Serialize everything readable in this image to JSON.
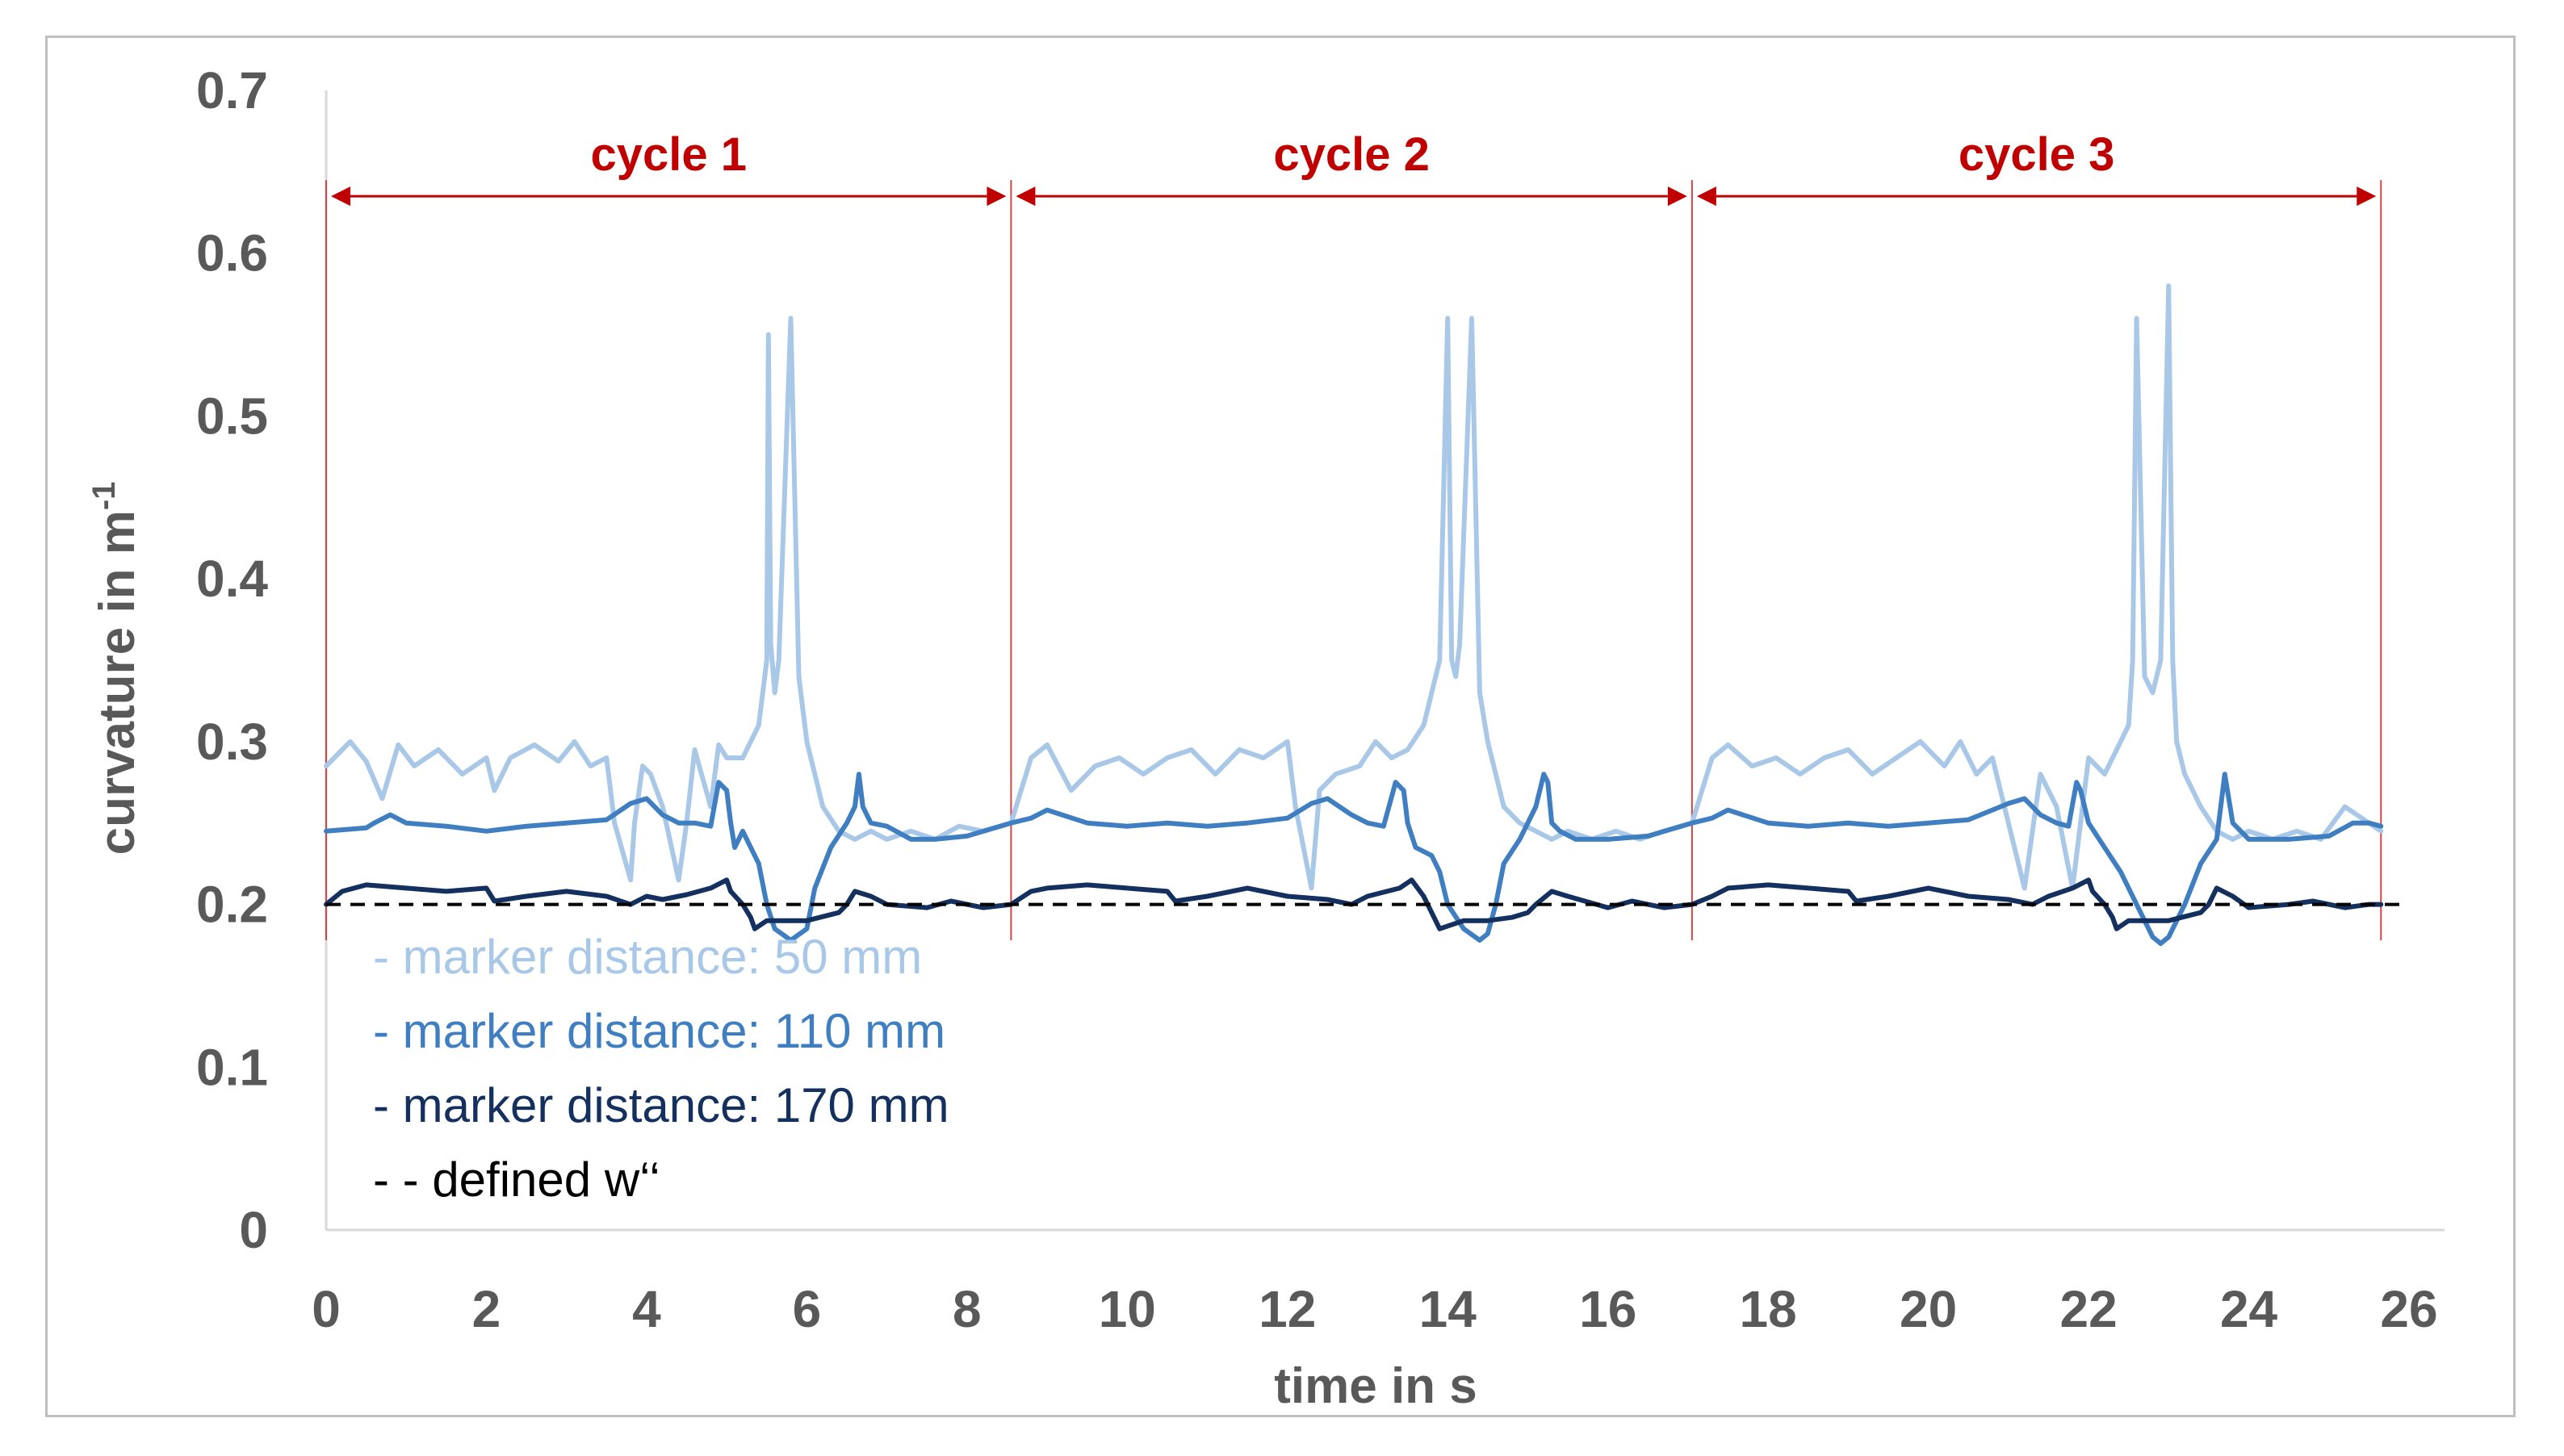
{
  "chart_data": {
    "type": "line",
    "title": "",
    "xlabel": "time in s",
    "ylabel": "curvature in m",
    "ylabel_superscript": "-1",
    "xlim": [
      0,
      26
    ],
    "ylim": [
      0,
      0.7
    ],
    "xticks": [
      0,
      2,
      4,
      6,
      8,
      10,
      12,
      14,
      16,
      18,
      20,
      22,
      24,
      26
    ],
    "yticks": [
      0,
      0.1,
      0.2,
      0.3,
      0.4,
      0.5,
      0.6,
      0.7
    ],
    "yticklabels": [
      "0",
      "0.1",
      "0.2",
      "0.3",
      "0.4",
      "0.5",
      "0.6",
      "0.7"
    ],
    "grid": false,
    "legend_position": "bottom-left",
    "cycles": [
      {
        "label": "cycle 1",
        "start": 0,
        "end": 8.55
      },
      {
        "label": "cycle 2",
        "start": 8.55,
        "end": 17.05
      },
      {
        "label": "cycle 3",
        "start": 17.05,
        "end": 25.65
      }
    ],
    "series": [
      {
        "name": "marker distance: 50 mm",
        "legend_prefix": "-",
        "color": "#a9c8e8",
        "dash": "solid",
        "x": [
          0,
          0.3,
          0.5,
          0.7,
          0.9,
          1.1,
          1.4,
          1.7,
          2.0,
          2.1,
          2.3,
          2.6,
          2.9,
          3.1,
          3.3,
          3.5,
          3.6,
          3.8,
          3.85,
          3.95,
          4.05,
          4.2,
          4.4,
          4.5,
          4.6,
          4.8,
          4.9,
          5.0,
          5.2,
          5.4,
          5.5,
          5.52,
          5.55,
          5.6,
          5.65,
          5.8,
          5.9,
          6.0,
          6.05,
          6.1,
          6.2,
          6.4,
          6.6,
          6.8,
          7.0,
          7.3,
          7.6,
          7.9,
          8.2,
          8.55,
          8.8,
          9.0,
          9.3,
          9.6,
          9.9,
          10.2,
          10.5,
          10.8,
          11.1,
          11.4,
          11.7,
          12.0,
          12.1,
          12.3,
          12.4,
          12.6,
          12.9,
          13.1,
          13.3,
          13.5,
          13.7,
          13.9,
          14.0,
          14.05,
          14.1,
          14.15,
          14.3,
          14.4,
          14.5,
          14.55,
          14.6,
          14.7,
          14.9,
          15.1,
          15.3,
          15.5,
          15.8,
          16.1,
          16.4,
          16.7,
          17.05,
          17.3,
          17.5,
          17.8,
          18.1,
          18.4,
          18.7,
          19.0,
          19.3,
          19.6,
          19.9,
          20.2,
          20.4,
          20.6,
          20.8,
          21.0,
          21.2,
          21.4,
          21.6,
          21.8,
          22.0,
          22.2,
          22.4,
          22.5,
          22.55,
          22.6,
          22.7,
          22.8,
          22.9,
          23.0,
          23.05,
          23.1,
          23.2,
          23.4,
          23.6,
          23.8,
          24.0,
          24.3,
          24.6,
          24.9,
          25.2,
          25.65
        ],
        "y": [
          0.285,
          0.3,
          0.288,
          0.265,
          0.298,
          0.285,
          0.295,
          0.28,
          0.29,
          0.27,
          0.29,
          0.298,
          0.288,
          0.3,
          0.285,
          0.29,
          0.25,
          0.215,
          0.25,
          0.285,
          0.28,
          0.26,
          0.215,
          0.25,
          0.295,
          0.26,
          0.298,
          0.29,
          0.29,
          0.31,
          0.35,
          0.55,
          0.36,
          0.33,
          0.35,
          0.56,
          0.34,
          0.3,
          0.29,
          0.28,
          0.26,
          0.245,
          0.24,
          0.245,
          0.24,
          0.245,
          0.24,
          0.248,
          0.245,
          0.25,
          0.29,
          0.298,
          0.27,
          0.285,
          0.29,
          0.28,
          0.29,
          0.295,
          0.28,
          0.295,
          0.29,
          0.3,
          0.26,
          0.21,
          0.27,
          0.28,
          0.285,
          0.3,
          0.29,
          0.295,
          0.31,
          0.35,
          0.56,
          0.35,
          0.34,
          0.36,
          0.56,
          0.33,
          0.3,
          0.29,
          0.28,
          0.26,
          0.25,
          0.245,
          0.24,
          0.245,
          0.24,
          0.245,
          0.24,
          0.245,
          0.25,
          0.29,
          0.298,
          0.285,
          0.29,
          0.28,
          0.29,
          0.295,
          0.28,
          0.29,
          0.3,
          0.285,
          0.3,
          0.28,
          0.29,
          0.25,
          0.21,
          0.28,
          0.26,
          0.21,
          0.29,
          0.28,
          0.3,
          0.31,
          0.35,
          0.56,
          0.34,
          0.33,
          0.35,
          0.58,
          0.35,
          0.3,
          0.28,
          0.26,
          0.245,
          0.24,
          0.245,
          0.24,
          0.245,
          0.24,
          0.26,
          0.245
        ]
      },
      {
        "name": "marker distance: 110 mm",
        "legend_prefix": "-",
        "color": "#3f7fc1",
        "dash": "solid",
        "x": [
          0,
          0.5,
          0.6,
          0.8,
          1.0,
          1.5,
          2.0,
          2.5,
          3.0,
          3.5,
          3.8,
          4.0,
          4.2,
          4.4,
          4.6,
          4.8,
          4.9,
          5.0,
          5.05,
          5.1,
          5.2,
          5.4,
          5.5,
          5.6,
          5.8,
          6.0,
          6.1,
          6.3,
          6.5,
          6.6,
          6.65,
          6.7,
          6.8,
          7.0,
          7.3,
          7.6,
          8.0,
          8.55,
          8.8,
          9.0,
          9.5,
          10.0,
          10.5,
          11.0,
          11.5,
          12.0,
          12.3,
          12.5,
          12.8,
          13.0,
          13.2,
          13.35,
          13.45,
          13.5,
          13.6,
          13.8,
          13.9,
          14.0,
          14.2,
          14.4,
          14.5,
          14.6,
          14.7,
          14.9,
          15.1,
          15.2,
          15.25,
          15.3,
          15.4,
          15.6,
          16.0,
          16.5,
          17.05,
          17.3,
          17.5,
          18.0,
          18.5,
          19.0,
          19.5,
          20.0,
          20.5,
          20.8,
          21.0,
          21.2,
          21.4,
          21.6,
          21.75,
          21.85,
          21.9,
          22.0,
          22.2,
          22.4,
          22.6,
          22.8,
          22.9,
          23.0,
          23.2,
          23.4,
          23.6,
          23.65,
          23.7,
          23.8,
          24.0,
          24.5,
          25.0,
          25.3,
          25.5,
          25.65
        ],
        "y": [
          0.245,
          0.247,
          0.25,
          0.255,
          0.25,
          0.248,
          0.245,
          0.248,
          0.25,
          0.252,
          0.262,
          0.265,
          0.255,
          0.25,
          0.25,
          0.248,
          0.275,
          0.27,
          0.25,
          0.235,
          0.245,
          0.225,
          0.2,
          0.185,
          0.178,
          0.185,
          0.21,
          0.235,
          0.25,
          0.26,
          0.28,
          0.26,
          0.25,
          0.248,
          0.24,
          0.24,
          0.242,
          0.25,
          0.253,
          0.258,
          0.25,
          0.248,
          0.25,
          0.248,
          0.25,
          0.253,
          0.262,
          0.265,
          0.255,
          0.25,
          0.248,
          0.275,
          0.27,
          0.25,
          0.235,
          0.23,
          0.22,
          0.2,
          0.185,
          0.178,
          0.182,
          0.2,
          0.225,
          0.24,
          0.26,
          0.28,
          0.275,
          0.25,
          0.245,
          0.24,
          0.24,
          0.242,
          0.25,
          0.253,
          0.258,
          0.25,
          0.248,
          0.25,
          0.248,
          0.25,
          0.252,
          0.258,
          0.262,
          0.265,
          0.255,
          0.25,
          0.248,
          0.275,
          0.27,
          0.25,
          0.235,
          0.22,
          0.2,
          0.18,
          0.176,
          0.18,
          0.2,
          0.225,
          0.24,
          0.26,
          0.28,
          0.25,
          0.24,
          0.24,
          0.242,
          0.25,
          0.25,
          0.248
        ]
      },
      {
        "name": "marker distance: 170 mm",
        "legend_prefix": "-",
        "color": "#14305e",
        "dash": "solid",
        "x": [
          0,
          0.2,
          0.5,
          1.0,
          1.5,
          2.0,
          2.1,
          2.5,
          3.0,
          3.5,
          3.8,
          4.0,
          4.2,
          4.5,
          4.8,
          5.0,
          5.05,
          5.2,
          5.3,
          5.35,
          5.5,
          5.8,
          6.0,
          6.4,
          6.5,
          6.6,
          6.8,
          7.0,
          7.5,
          7.8,
          8.2,
          8.55,
          8.8,
          9.0,
          9.5,
          10.0,
          10.5,
          10.6,
          11.0,
          11.5,
          12.0,
          12.5,
          12.8,
          13.0,
          13.4,
          13.55,
          13.7,
          13.8,
          13.9,
          14.2,
          14.5,
          14.8,
          15.0,
          15.1,
          15.3,
          15.5,
          16.0,
          16.3,
          16.7,
          17.05,
          17.3,
          17.5,
          18.0,
          18.5,
          19.0,
          19.1,
          19.5,
          20.0,
          20.5,
          21.0,
          21.3,
          21.5,
          21.8,
          22.0,
          22.05,
          22.2,
          22.3,
          22.35,
          22.5,
          22.8,
          23.0,
          23.4,
          23.5,
          23.6,
          23.8,
          24.0,
          24.5,
          24.8,
          25.2,
          25.5,
          25.65
        ],
        "y": [
          0.2,
          0.208,
          0.212,
          0.21,
          0.208,
          0.21,
          0.202,
          0.205,
          0.208,
          0.205,
          0.2,
          0.205,
          0.203,
          0.206,
          0.21,
          0.215,
          0.208,
          0.2,
          0.192,
          0.185,
          0.19,
          0.19,
          0.19,
          0.195,
          0.2,
          0.208,
          0.205,
          0.2,
          0.198,
          0.202,
          0.198,
          0.2,
          0.208,
          0.21,
          0.212,
          0.21,
          0.208,
          0.202,
          0.205,
          0.21,
          0.205,
          0.203,
          0.2,
          0.205,
          0.21,
          0.215,
          0.205,
          0.195,
          0.185,
          0.19,
          0.19,
          0.192,
          0.195,
          0.2,
          0.208,
          0.205,
          0.198,
          0.202,
          0.198,
          0.2,
          0.205,
          0.21,
          0.212,
          0.21,
          0.208,
          0.202,
          0.205,
          0.21,
          0.205,
          0.203,
          0.2,
          0.205,
          0.21,
          0.215,
          0.208,
          0.2,
          0.192,
          0.185,
          0.19,
          0.19,
          0.19,
          0.195,
          0.2,
          0.21,
          0.205,
          0.198,
          0.2,
          0.202,
          0.198,
          0.2,
          0.2
        ]
      },
      {
        "name": "defined w‘‘",
        "legend_prefix": "- -",
        "color": "#000000",
        "dash": "dashed",
        "x": [
          0,
          26
        ],
        "y": [
          0.2,
          0.2
        ]
      }
    ]
  }
}
